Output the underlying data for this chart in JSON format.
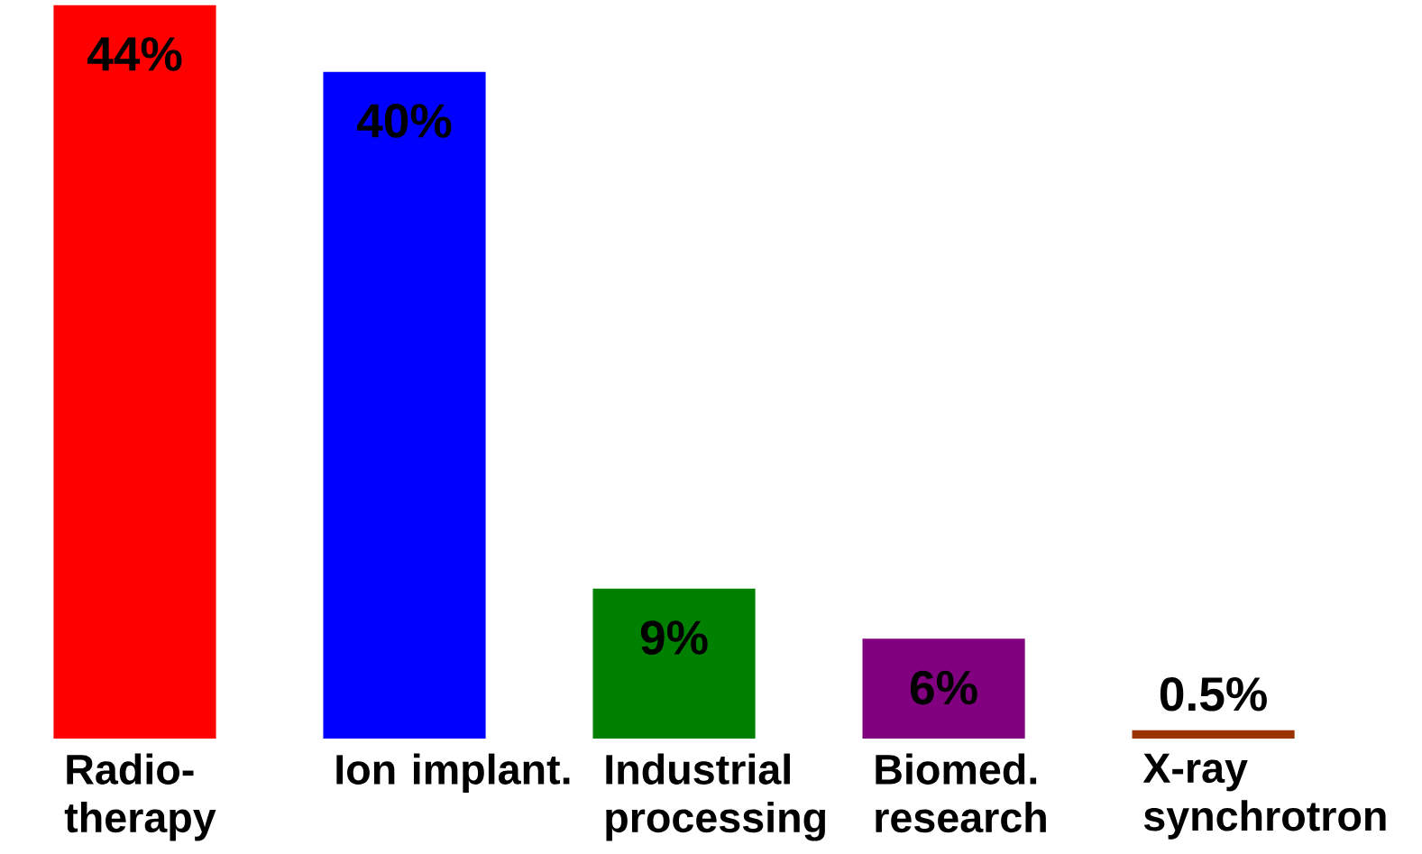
{
  "chart_data": {
    "type": "bar",
    "categories": [
      "Radio-therapy",
      "Ion implant.",
      "Industrial processing",
      "Biomed. research",
      "X-ray synchrotron"
    ],
    "values": [
      44,
      40,
      9,
      6,
      0.5
    ],
    "colors": [
      "#ff0000",
      "#0000ff",
      "#008000",
      "#800080",
      "#993300"
    ],
    "value_labels": [
      "44%",
      "40%",
      "9%",
      "6%",
      "0.5%"
    ]
  }
}
